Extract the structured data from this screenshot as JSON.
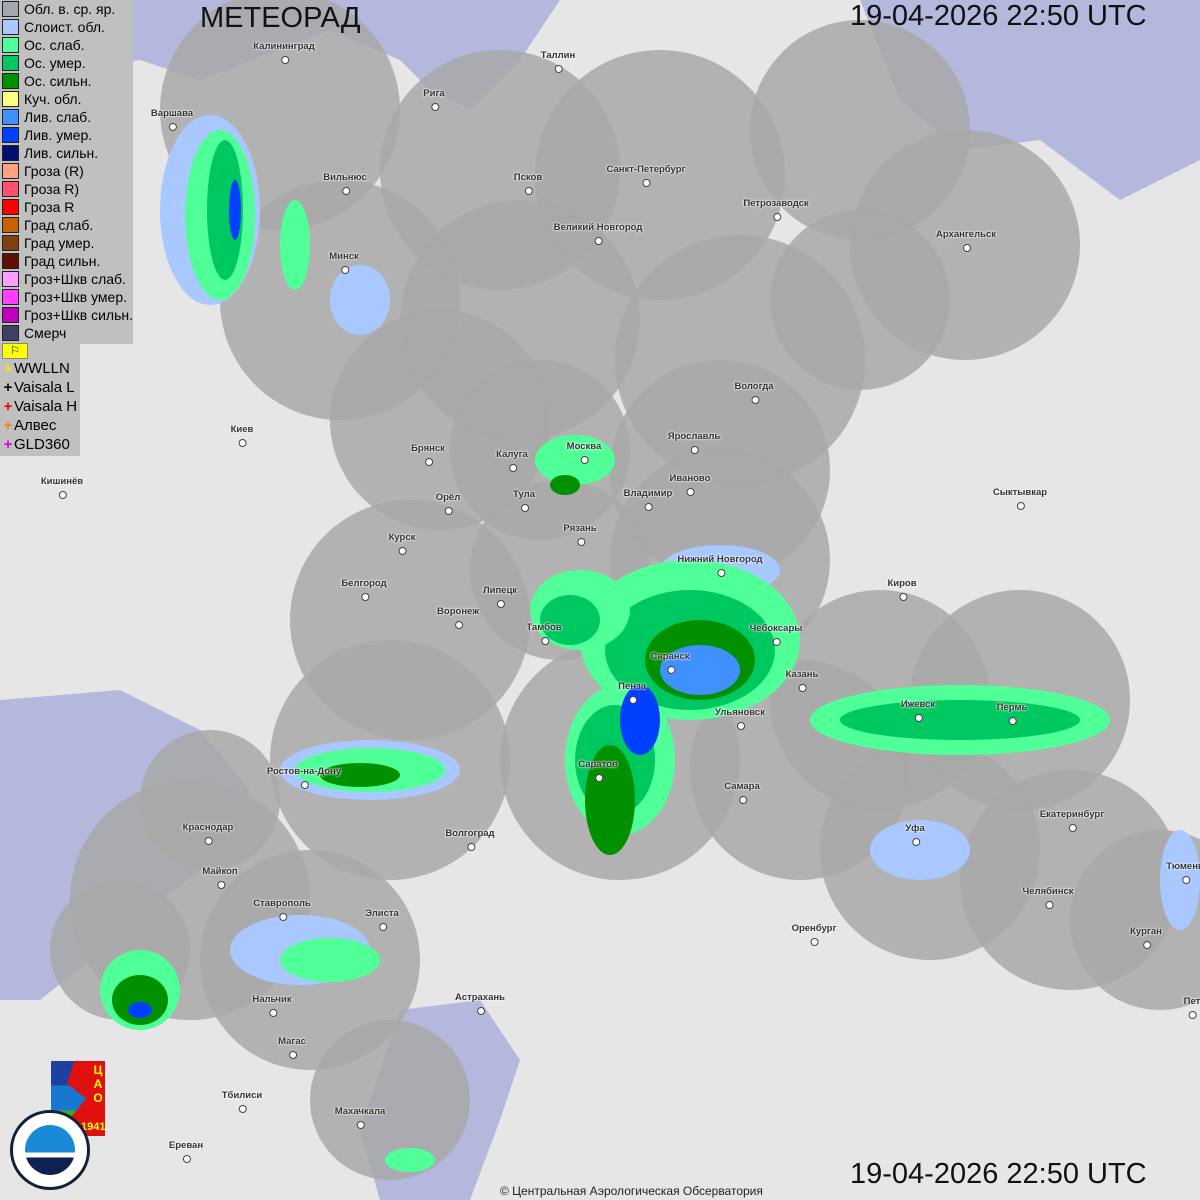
{
  "header": {
    "title": "МЕТЕОРАД",
    "datetime_top": "19-04-2026  22:50 UTC",
    "datetime_bottom": "19-04-2026  22:50 UTC"
  },
  "legend": [
    {
      "label": "Обл. в. ср. яр.",
      "color": "#a0a8b0"
    },
    {
      "label": "Слоист. обл.",
      "color": "#a8c8ff"
    },
    {
      "label": "Ос. слаб.",
      "color": "#50ff98"
    },
    {
      "label": "Ос. умер.",
      "color": "#00c860"
    },
    {
      "label": "Ос. сильн.",
      "color": "#009000"
    },
    {
      "label": "Куч. обл.",
      "color": "#ffff80"
    },
    {
      "label": "Лив. слаб.",
      "color": "#4090ff"
    },
    {
      "label": "Лив. умер.",
      "color": "#0040ff"
    },
    {
      "label": "Лив. сильн.",
      "color": "#001070"
    },
    {
      "label": "Гроза (R)",
      "color": "#ffa080"
    },
    {
      "label": "Гроза R)",
      "color": "#ff5070"
    },
    {
      "label": "Гроза R",
      "color": "#ff0000"
    },
    {
      "label": "Град слаб.",
      "color": "#c86000"
    },
    {
      "label": "Град умер.",
      "color": "#804010"
    },
    {
      "label": "Град сильн.",
      "color": "#601000"
    },
    {
      "label": "Гроз+Шкв слаб.",
      "color": "#ffa0ff"
    },
    {
      "label": "Гроз+Шкв умер.",
      "color": "#ff40ff"
    },
    {
      "label": "Гроз+Шкв сильн.",
      "color": "#c000c0"
    },
    {
      "label": "Смерч",
      "color": "#404060"
    }
  ],
  "lightning": {
    "toggle_icon": "flag-icon",
    "sources": [
      {
        "label": "WWLLN",
        "color": "#ffe000"
      },
      {
        "label": "Vaisala L",
        "color": "#000000"
      },
      {
        "label": "Vaisala H",
        "color": "#ff0000"
      },
      {
        "label": "Алвес",
        "color": "#ff8000"
      },
      {
        "label": "GLD360",
        "color": "#e000e0"
      }
    ]
  },
  "cities": [
    "Калининград",
    "Таллин",
    "Рига",
    "Варшава",
    "Вильнюс",
    "Псков",
    "Санкт-Петербург",
    "Петрозаводск",
    "Великий Новгород",
    "Архангельск",
    "Минск",
    "Вологда",
    "Ярославль",
    "Киев",
    "Брянск",
    "Калуга",
    "Москва",
    "Иваново",
    "Кишинёв",
    "Орёл",
    "Тула",
    "Владимир",
    "Сыктывкар",
    "Рязань",
    "Курск",
    "Нижний Новгород",
    "Белгород",
    "Липецк",
    "Киров",
    "Воронеж",
    "Тамбов",
    "Чебоксары",
    "Саранск",
    "Казань",
    "Пенза",
    "Ижевск",
    "Пермь",
    "Ульяновск",
    "Ростов-на-Дону",
    "Саратов",
    "Самара",
    "Краснодар",
    "Волгоград",
    "Уфа",
    "Екатеринбург",
    "Тюмень",
    "Майкоп",
    "Челябинск",
    "Ставрополь",
    "Элиста",
    "Оренбург",
    "Курган",
    "Нальчик",
    "Астрахань",
    "Магас",
    "Тбилиси",
    "Махачкала",
    "Ереван",
    "Пет"
  ],
  "logos": {
    "cao": "ЦАО 1941",
    "roshydromet": "РОСГИДРОМЕТ ROSHYDROMET"
  },
  "footer": {
    "copyright": "© Центральная Аэрологическая Обсерватория"
  }
}
